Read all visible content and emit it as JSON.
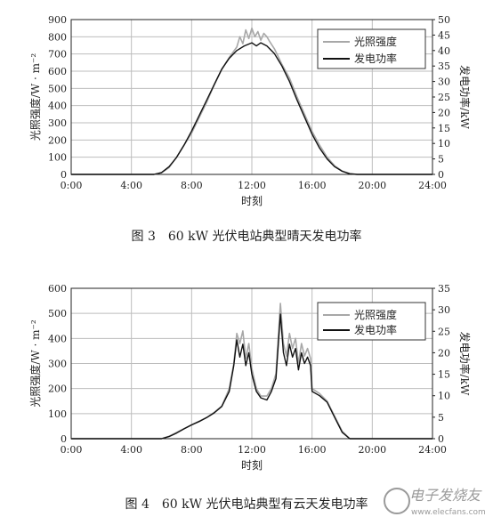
{
  "chart_data": [
    {
      "type": "line",
      "caption": "图 3　60 kW 光伏电站典型晴天发电功率",
      "xlabel": "时刻",
      "ylabel": "光照强度/W · m⁻²",
      "y2label": "发电功率/kW",
      "xlim": [
        0,
        24
      ],
      "xticks": [
        "0:00",
        "4:00",
        "8:00",
        "12:00",
        "16:00",
        "20:00",
        "24:00"
      ],
      "ylim": [
        0,
        900
      ],
      "yticks": [
        "0",
        "100",
        "200",
        "300",
        "400",
        "500",
        "600",
        "700",
        "800",
        "900"
      ],
      "y2lim": [
        0,
        50
      ],
      "y2ticks": [
        "0",
        "5",
        "10",
        "15",
        "20",
        "25",
        "30",
        "35",
        "40",
        "45",
        "50"
      ],
      "grid": true,
      "legend_position": "top-right",
      "series": [
        {
          "name": "光照强度",
          "axis": "left",
          "color": "#a8a8a8",
          "points": [
            [
              0,
              0
            ],
            [
              5.5,
              0
            ],
            [
              6,
              10
            ],
            [
              6.5,
              40
            ],
            [
              7,
              100
            ],
            [
              7.5,
              170
            ],
            [
              8,
              240
            ],
            [
              8.5,
              330
            ],
            [
              9,
              420
            ],
            [
              9.5,
              520
            ],
            [
              10,
              610
            ],
            [
              10.5,
              680
            ],
            [
              11,
              740
            ],
            [
              11.2,
              800
            ],
            [
              11.4,
              760
            ],
            [
              11.6,
              840
            ],
            [
              11.8,
              790
            ],
            [
              12,
              850
            ],
            [
              12.2,
              800
            ],
            [
              12.4,
              830
            ],
            [
              12.6,
              780
            ],
            [
              12.8,
              820
            ],
            [
              13,
              800
            ],
            [
              13.2,
              770
            ],
            [
              13.5,
              730
            ],
            [
              14,
              640
            ],
            [
              14.5,
              560
            ],
            [
              15,
              450
            ],
            [
              15.5,
              350
            ],
            [
              16,
              250
            ],
            [
              16.5,
              170
            ],
            [
              17,
              100
            ],
            [
              17.5,
              50
            ],
            [
              18,
              20
            ],
            [
              18.5,
              5
            ],
            [
              19,
              0
            ],
            [
              24,
              0
            ]
          ]
        },
        {
          "name": "发电功率",
          "axis": "right",
          "color": "#111111",
          "points": [
            [
              0,
              0
            ],
            [
              5.5,
              0
            ],
            [
              6,
              0.6
            ],
            [
              6.5,
              2.5
            ],
            [
              7,
              5.5
            ],
            [
              7.5,
              9.5
            ],
            [
              8,
              14
            ],
            [
              8.5,
              19
            ],
            [
              9,
              24
            ],
            [
              9.5,
              29
            ],
            [
              10,
              34
            ],
            [
              10.5,
              37.5
            ],
            [
              11,
              40
            ],
            [
              11.5,
              41.5
            ],
            [
              12,
              42.5
            ],
            [
              12.3,
              41.5
            ],
            [
              12.6,
              42.5
            ],
            [
              13,
              41.5
            ],
            [
              13.5,
              39
            ],
            [
              14,
              35
            ],
            [
              14.5,
              30
            ],
            [
              15,
              24
            ],
            [
              15.5,
              18.5
            ],
            [
              16,
              13
            ],
            [
              16.5,
              8.5
            ],
            [
              17,
              5
            ],
            [
              17.5,
              2.5
            ],
            [
              18,
              1
            ],
            [
              18.5,
              0.2
            ],
            [
              19,
              0
            ],
            [
              24,
              0
            ]
          ]
        }
      ]
    },
    {
      "type": "line",
      "caption": "图 4　60 kW 光伏电站典型有云天发电功率",
      "xlabel": "时刻",
      "ylabel": "光照强度/W · m⁻²",
      "y2label": "发电功率/kW",
      "xlim": [
        0,
        24
      ],
      "xticks": [
        "0:00",
        "4:00",
        "8:00",
        "12:00",
        "16:00",
        "20:00",
        "24:00"
      ],
      "ylim": [
        0,
        600
      ],
      "yticks": [
        "0",
        "100",
        "200",
        "300",
        "400",
        "500",
        "600"
      ],
      "y2lim": [
        0,
        35
      ],
      "y2ticks": [
        "0",
        "5",
        "10",
        "15",
        "20",
        "25",
        "30",
        "35"
      ],
      "grid": true,
      "legend_position": "top-right",
      "series": [
        {
          "name": "光照强度",
          "axis": "left",
          "color": "#a8a8a8",
          "points": [
            [
              0,
              0
            ],
            [
              6,
              0
            ],
            [
              6.5,
              10
            ],
            [
              7,
              25
            ],
            [
              7.5,
              40
            ],
            [
              8,
              55
            ],
            [
              8.5,
              70
            ],
            [
              9,
              85
            ],
            [
              9.5,
              105
            ],
            [
              10,
              130
            ],
            [
              10.5,
              200
            ],
            [
              10.8,
              300
            ],
            [
              11,
              420
            ],
            [
              11.2,
              380
            ],
            [
              11.4,
              430
            ],
            [
              11.6,
              320
            ],
            [
              11.8,
              380
            ],
            [
              12,
              280
            ],
            [
              12.3,
              200
            ],
            [
              12.6,
              170
            ],
            [
              13,
              170
            ],
            [
              13.3,
              200
            ],
            [
              13.6,
              260
            ],
            [
              13.9,
              540
            ],
            [
              14.1,
              380
            ],
            [
              14.3,
              330
            ],
            [
              14.5,
              420
            ],
            [
              14.7,
              360
            ],
            [
              14.9,
              400
            ],
            [
              15.1,
              300
            ],
            [
              15.3,
              380
            ],
            [
              15.5,
              330
            ],
            [
              15.7,
              360
            ],
            [
              15.9,
              320
            ],
            [
              16,
              200
            ],
            [
              16.5,
              180
            ],
            [
              17,
              150
            ],
            [
              17.5,
              90
            ],
            [
              18,
              30
            ],
            [
              18.5,
              0
            ],
            [
              24,
              0
            ]
          ]
        },
        {
          "name": "发电功率",
          "axis": "right",
          "color": "#111111",
          "points": [
            [
              0,
              0
            ],
            [
              6,
              0
            ],
            [
              6.5,
              0.5
            ],
            [
              7,
              1.3
            ],
            [
              7.5,
              2.3
            ],
            [
              8,
              3.2
            ],
            [
              8.5,
              4
            ],
            [
              9,
              4.9
            ],
            [
              9.5,
              6
            ],
            [
              10,
              7.5
            ],
            [
              10.5,
              11
            ],
            [
              10.8,
              17
            ],
            [
              11,
              23
            ],
            [
              11.2,
              19
            ],
            [
              11.4,
              22
            ],
            [
              11.6,
              17
            ],
            [
              11.8,
              20
            ],
            [
              12,
              15
            ],
            [
              12.3,
              11
            ],
            [
              12.6,
              9.5
            ],
            [
              13,
              9
            ],
            [
              13.3,
              11
            ],
            [
              13.6,
              14
            ],
            [
              13.9,
              29
            ],
            [
              14.1,
              20
            ],
            [
              14.3,
              17
            ],
            [
              14.5,
              22
            ],
            [
              14.7,
              19
            ],
            [
              14.9,
              21
            ],
            [
              15.1,
              16
            ],
            [
              15.3,
              20
            ],
            [
              15.5,
              17.5
            ],
            [
              15.7,
              19
            ],
            [
              15.9,
              17
            ],
            [
              16,
              11
            ],
            [
              16.5,
              10
            ],
            [
              17,
              8.5
            ],
            [
              17.5,
              5
            ],
            [
              18,
              1.5
            ],
            [
              18.5,
              0
            ],
            [
              24,
              0
            ]
          ]
        }
      ]
    }
  ],
  "watermark": {
    "text": "电子发烧友",
    "url": "www.elecfans.com"
  }
}
